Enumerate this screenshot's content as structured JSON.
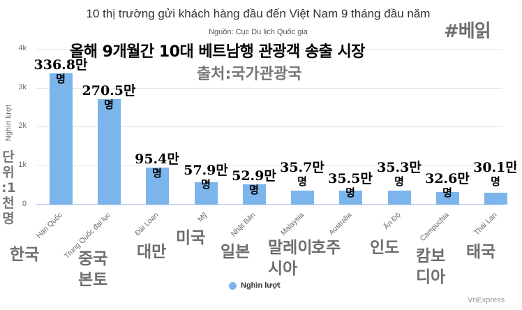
{
  "chart_data": {
    "type": "bar",
    "title": "10 thị trường gửi khách hàng đầu đến Việt Nam 9 tháng đầu năm",
    "subtitle": "Nguồn: Cục Du lịch Quốc gia",
    "categories": [
      "Hàn Quốc",
      "Trung Quốc đại lục",
      "Đài Loan",
      "Mỹ",
      "Nhật Bản",
      "Malaysia",
      "Australia",
      "Ấn Độ",
      "Campuchia",
      "Thái Lan"
    ],
    "series": [
      {
        "name": "Nghìn lượt",
        "color": "#7cb5ec",
        "values": [
          3368,
          2705,
          954,
          579,
          529,
          357,
          355,
          353,
          326,
          301
        ]
      }
    ],
    "xlabel": "",
    "ylabel": "Nghìn lượt",
    "ylim": [
      0,
      4000
    ],
    "yticks": [
      "0",
      "1k",
      "2k",
      "3k",
      "4k"
    ],
    "grid": true,
    "legend_position": "bottom"
  },
  "overlay": {
    "hashtag": "#베읽",
    "kr_title": "올해 9개월간 10대 베트남행 관광객 송출 시장",
    "kr_source": "출처:국가관광국",
    "kr_unit": [
      "단",
      "위",
      ":1",
      "천",
      "명"
    ],
    "data_labels": [
      {
        "value": "336.8만",
        "unit": "명"
      },
      {
        "value": "270.5만",
        "unit": "명"
      },
      {
        "value": "95.4만",
        "unit": "명"
      },
      {
        "value": "57.9만",
        "unit": "명"
      },
      {
        "value": "52.9만",
        "unit": "명"
      },
      {
        "value": "35.7만",
        "unit": "명"
      },
      {
        "value": "35.5만",
        "unit": "명"
      },
      {
        "value": "35.3만",
        "unit": "명"
      },
      {
        "value": "32.6만",
        "unit": "명"
      },
      {
        "value": "30.1만",
        "unit": "명"
      }
    ],
    "kr_categories": [
      "한국",
      "중국\n본토",
      "대만",
      "미국",
      "일본",
      "말레이\n시아",
      "호주",
      "인도",
      "캄보\n디아",
      "태국"
    ]
  },
  "credit": "VnExpress"
}
